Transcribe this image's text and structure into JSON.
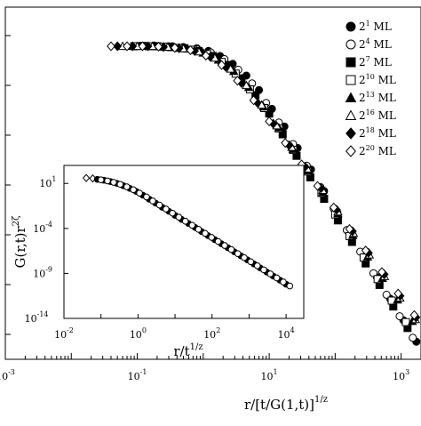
{
  "chart_data": {
    "type": "scatter",
    "scale": "log-log",
    "main": {
      "xlabel": {
        "base": "r/[t/G(1,t)]",
        "sup": "1/z"
      },
      "ylabel": "",
      "xlim": [
        0.001,
        2000
      ],
      "ylim_log10": [
        -8,
        1
      ],
      "x_ticks": [
        {
          "base": "10",
          "exp": "-3",
          "value": 0.001
        },
        {
          "base": "10",
          "exp": "-1",
          "value": 0.1
        },
        {
          "base": "10",
          "exp": "1",
          "value": 10
        },
        {
          "base": "10",
          "exp": "3",
          "value": 1000
        }
      ],
      "grid": false,
      "legend_position": "top-right",
      "series": [
        {
          "name": {
            "base": "2",
            "sup": "1",
            "suffix": " ML"
          },
          "marker": "filled-circle",
          "x": [
            0.34,
            0.5,
            0.8,
            1.2,
            1.8,
            2.8,
            4.5,
            7,
            11,
            17,
            27,
            43,
            68,
            108,
            170,
            270,
            430,
            680,
            1080,
            1700
          ],
          "y_log10": [
            0.0,
            -0.02,
            -0.05,
            -0.12,
            -0.25,
            -0.45,
            -0.75,
            -1.12,
            -1.6,
            -2.05,
            -2.6,
            -3.15,
            -3.7,
            -4.25,
            -4.8,
            -5.35,
            -5.9,
            -6.45,
            -7.0,
            -7.55
          ]
        },
        {
          "name": {
            "base": "2",
            "sup": "4",
            "suffix": " ML"
          },
          "marker": "open-circle",
          "x": [
            0.18,
            0.3,
            0.5,
            0.8,
            1.3,
            2.1,
            3.4,
            5.5,
            9,
            14,
            23,
            37,
            60,
            95,
            150,
            240,
            380,
            600,
            950,
            1500
          ],
          "y_log10": [
            0.02,
            0.0,
            -0.03,
            -0.07,
            -0.16,
            -0.33,
            -0.6,
            -0.95,
            -1.45,
            -1.95,
            -2.5,
            -3.05,
            -3.6,
            -4.15,
            -4.7,
            -5.25,
            -5.8,
            -6.35,
            -6.9,
            -7.45
          ]
        },
        {
          "name": {
            "base": "2",
            "sup": "7",
            "suffix": " ML"
          },
          "marker": "filled-square",
          "x": [
            0.12,
            0.2,
            0.32,
            0.52,
            0.85,
            1.4,
            2.3,
            3.8,
            6.2,
            10,
            16,
            26,
            42,
            68,
            110,
            180,
            290,
            470,
            760,
            1250
          ],
          "y_log10": [
            0.01,
            0.0,
            -0.02,
            -0.05,
            -0.12,
            -0.25,
            -0.48,
            -0.82,
            -1.25,
            -1.72,
            -2.25,
            -2.8,
            -3.35,
            -3.9,
            -4.45,
            -5.0,
            -5.55,
            -6.1,
            -6.65,
            -7.2
          ]
        },
        {
          "name": {
            "base": "2",
            "sup": "10",
            "suffix": " ML"
          },
          "marker": "open-square",
          "x": [
            0.09,
            0.15,
            0.25,
            0.42,
            0.7,
            1.15,
            1.9,
            3.1,
            5.1,
            8.4,
            14,
            23,
            38,
            62,
            100,
            165,
            270,
            440,
            720,
            1180
          ],
          "y_log10": [
            0.0,
            0.0,
            -0.01,
            -0.04,
            -0.09,
            -0.2,
            -0.4,
            -0.7,
            -1.1,
            -1.58,
            -2.1,
            -2.65,
            -3.2,
            -3.75,
            -4.3,
            -4.85,
            -5.4,
            -5.95,
            -6.5,
            -7.05
          ]
        },
        {
          "name": {
            "base": "2",
            "sup": "13",
            "suffix": " ML"
          },
          "marker": "filled-triangle",
          "x": [
            0.07,
            0.12,
            0.2,
            0.34,
            0.58,
            1.0,
            1.7,
            2.9,
            4.9,
            8.2,
            14,
            23,
            39,
            65,
            110,
            185,
            310,
            520,
            880,
            1480
          ],
          "y_log10": [
            0.0,
            0.0,
            -0.01,
            -0.03,
            -0.07,
            -0.17,
            -0.35,
            -0.64,
            -1.05,
            -1.55,
            -2.08,
            -2.63,
            -3.18,
            -3.73,
            -4.28,
            -4.83,
            -5.38,
            -5.93,
            -6.48,
            -7.03
          ]
        },
        {
          "name": {
            "base": "2",
            "sup": "16",
            "suffix": " ML"
          },
          "marker": "open-triangle",
          "x": [
            0.06,
            0.1,
            0.17,
            0.29,
            0.5,
            0.86,
            1.5,
            2.6,
            4.5,
            7.7,
            13,
            22,
            38,
            65,
            110,
            190,
            330,
            560,
            960,
            1650
          ],
          "y_log10": [
            0.0,
            0.0,
            0.0,
            -0.02,
            -0.06,
            -0.14,
            -0.3,
            -0.58,
            -1.0,
            -1.5,
            -2.03,
            -2.58,
            -3.13,
            -3.68,
            -4.23,
            -4.78,
            -5.33,
            -5.88,
            -6.43,
            -6.98
          ]
        },
        {
          "name": {
            "base": "2",
            "sup": "18",
            "suffix": " ML"
          },
          "marker": "filled-diamond",
          "x": [
            0.05,
            0.085,
            0.145,
            0.25,
            0.43,
            0.74,
            1.28,
            2.2,
            3.8,
            6.6,
            11.5,
            20,
            35,
            61,
            105,
            183,
            320,
            555,
            965,
            1680
          ],
          "y_log10": [
            0.0,
            0.0,
            0.0,
            -0.02,
            -0.05,
            -0.12,
            -0.27,
            -0.53,
            -0.94,
            -1.44,
            -1.98,
            -2.53,
            -3.08,
            -3.63,
            -4.18,
            -4.73,
            -5.28,
            -5.83,
            -6.38,
            -6.93
          ]
        },
        {
          "name": {
            "base": "2",
            "sup": "20",
            "suffix": " ML"
          },
          "marker": "open-diamond",
          "x": [
            0.04,
            0.07,
            0.12,
            0.21,
            0.37,
            0.64,
            1.1,
            1.9,
            3.3,
            5.8,
            10,
            17.5,
            31,
            54,
            95,
            165,
            290,
            510,
            900,
            1580
          ],
          "y_log10": [
            0.0,
            0.0,
            0.0,
            -0.01,
            -0.04,
            -0.1,
            -0.24,
            -0.48,
            -0.88,
            -1.38,
            -1.92,
            -2.47,
            -3.02,
            -3.57,
            -4.12,
            -4.67,
            -5.22,
            -5.77,
            -6.32,
            -6.87
          ]
        }
      ]
    },
    "inset": {
      "xlabel": {
        "base": "r/t",
        "sup": "1/z"
      },
      "ylabel": {
        "base": "G(r,t)r",
        "sup": "2ζ"
      },
      "xlim": [
        0.01,
        30000
      ],
      "ylim": [
        1e-14,
        1000.0
      ],
      "x_ticks": [
        {
          "base": "10",
          "exp": "-2",
          "value": 0.01
        },
        {
          "base": "10",
          "exp": "0",
          "value": 1
        },
        {
          "base": "10",
          "exp": "2",
          "value": 100
        },
        {
          "base": "10",
          "exp": "4",
          "value": 10000
        }
      ],
      "y_ticks": [
        {
          "base": "10",
          "exp": "1",
          "value": 10
        },
        {
          "base": "10",
          "exp": "-4",
          "value": 0.0001
        },
        {
          "base": "10",
          "exp": "-9",
          "value": 1e-09
        },
        {
          "base": "10",
          "exp": "-14",
          "value": 1e-14
        }
      ],
      "grid": false,
      "series": [
        {
          "marker": "open-diamond",
          "x": [
            0.04,
            0.06
          ],
          "y_log10": [
            1.6,
            1.55
          ]
        },
        {
          "marker": "filled-circle",
          "x": [
            0.08,
            0.12,
            0.18,
            0.27,
            0.4,
            0.6,
            0.9,
            1.35,
            2,
            3,
            4.5,
            6.8,
            10,
            15,
            23,
            35,
            52,
            78,
            118,
            178,
            268,
            400,
            600,
            900,
            1350,
            2000,
            3000,
            4500,
            6800,
            10000
          ],
          "y_log10": [
            1.45,
            1.35,
            1.2,
            1.0,
            0.75,
            0.45,
            0.1,
            -0.3,
            -0.75,
            -1.2,
            -1.65,
            -2.1,
            -2.55,
            -3.0,
            -3.45,
            -3.9,
            -4.35,
            -4.8,
            -5.25,
            -5.7,
            -6.15,
            -6.6,
            -7.05,
            -7.5,
            -7.95,
            -8.4,
            -8.85,
            -9.3,
            -9.75,
            -10.2
          ]
        },
        {
          "marker": "open-circle",
          "x": [
            0.1,
            0.15,
            0.22,
            0.33,
            0.5,
            0.75,
            1.1,
            1.7,
            2.5,
            3.8,
            5.7,
            8.5,
            12.7,
            19,
            29,
            43,
            65,
            97,
            146,
            219,
            330,
            495,
            740,
            1110,
            1670,
            2500,
            3750,
            5600,
            8400,
            12600
          ],
          "y_log10": [
            1.4,
            1.28,
            1.12,
            0.9,
            0.62,
            0.3,
            -0.08,
            -0.5,
            -0.95,
            -1.4,
            -1.85,
            -2.3,
            -2.75,
            -3.2,
            -3.65,
            -4.1,
            -4.55,
            -5.0,
            -5.45,
            -5.9,
            -6.35,
            -6.8,
            -7.25,
            -7.7,
            -8.15,
            -8.6,
            -9.05,
            -9.5,
            -9.95,
            -10.4
          ]
        }
      ]
    }
  }
}
